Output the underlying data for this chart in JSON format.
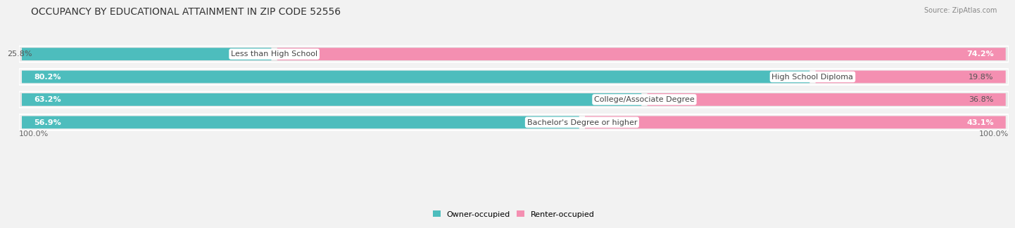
{
  "title": "OCCUPANCY BY EDUCATIONAL ATTAINMENT IN ZIP CODE 52556",
  "source": "Source: ZipAtlas.com",
  "categories": [
    "Less than High School",
    "High School Diploma",
    "College/Associate Degree",
    "Bachelor's Degree or higher"
  ],
  "owner_pct": [
    25.8,
    80.2,
    63.2,
    56.9
  ],
  "renter_pct": [
    74.2,
    19.8,
    36.8,
    43.1
  ],
  "owner_color": "#4dbdbd",
  "renter_color": "#f48fb1",
  "bg_color": "#f2f2f2",
  "row_bg_colors": [
    "#e8e8e8",
    "#f0f0f0",
    "#e8e8e8",
    "#f0f0f0"
  ],
  "title_fontsize": 10,
  "label_fontsize": 8,
  "pct_fontsize": 8,
  "legend_fontsize": 8,
  "axis_fontsize": 8
}
